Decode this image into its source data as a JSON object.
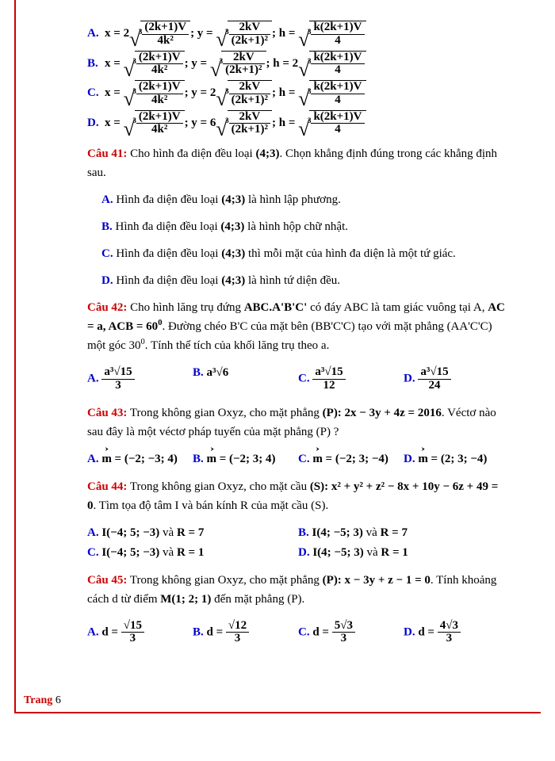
{
  "footer": {
    "label": "Trang",
    "num": "6"
  },
  "formula_opts": {
    "A": {
      "coef_x": "2",
      "coef_y": "",
      "coef_h": ""
    },
    "B": {
      "coef_x": "",
      "coef_y": "",
      "coef_h": "2"
    },
    "C": {
      "coef_x": "",
      "coef_y": "2",
      "coef_h": ""
    },
    "D": {
      "coef_x": "",
      "coef_y": "6",
      "coef_h": ""
    }
  },
  "q41": {
    "label": "Câu 41:",
    "text_before": " Cho hình đa diện đều loại ",
    "type": "(4;3)",
    "text_after": ". Chọn khẳng định đúng trong các khẳng định sau.",
    "opts": {
      "A": {
        "t1": "Hình đa diện đều loại ",
        "b": "(4;3)",
        "t2": " là hình lập phương."
      },
      "B": {
        "t1": "Hình đa diện đều loại ",
        "b": "(4;3)",
        "t2": " là hình hộp chữ nhật."
      },
      "C": {
        "t1": "Hình đa diện đều loại ",
        "b": "(4;3)",
        "t2": " thì mỗi mặt của hình đa diện là một tứ giác."
      },
      "D": {
        "t1": "Hình đa diện đều loại ",
        "b": "(4;3)",
        "t2": " là hình tứ diện đều."
      }
    }
  },
  "q42": {
    "label": "Câu 42:",
    "t1": " Cho hình lăng trụ đứng ",
    "prism": "ABC.A'B'C'",
    "t2": " có đáy ABC là tam giác vuông tại A, ",
    "cond": "AC = a, ACB = 60",
    "deg": "0",
    "t3": ". Đường chéo B'C của mặt bên (BB'C'C) tạo với mặt phẳng (AA'C'C) một góc 30",
    "t4": ". Tính thể tích của khối lăng trụ theo a.",
    "opts": {
      "A": {
        "num": "a³√15",
        "den": "3"
      },
      "B": {
        "plain": "a³√6"
      },
      "C": {
        "num": "a³√15",
        "den": "12"
      },
      "D": {
        "num": "a³√15",
        "den": "24"
      }
    }
  },
  "q43": {
    "label": "Câu 43:",
    "t1": " Trong không gian Oxyz, cho mặt phẳng ",
    "plane": "(P): 2x − 3y + 4z = 2016",
    "t2": ". Véctơ nào sau đây là một véctơ pháp tuyến của mặt phẳng (P) ?",
    "opts": {
      "A": "n = (−2; −3; 4)",
      "B": "n = (−2; 3; 4)",
      "C": "n = (−2; 3; −4)",
      "D": "n = (2; 3; −4)"
    }
  },
  "q44": {
    "label": "Câu 44:",
    "t1": " Trong không gian Oxyz, cho mặt cầu ",
    "sphere": "(S): x² + y² + z² − 8x + 10y − 6z + 49 = 0",
    "t2": ". Tìm tọa độ tâm I và bán kính R của mặt cầu (S).",
    "opts": {
      "A": {
        "i": "I(−4; 5; −3)",
        "r": "R = 7"
      },
      "B": {
        "i": "I(4; −5; 3)",
        "r": "R = 7"
      },
      "C": {
        "i": "I(−4; 5; −3)",
        "r": "R = 1"
      },
      "D": {
        "i": "I(4; −5; 3)",
        "r": "R = 1"
      }
    }
  },
  "q45": {
    "label": "Câu 45:",
    "t1": " Trong không gian Oxyz, cho mặt phẳng ",
    "plane": "(P): x − 3y + z − 1 = 0",
    "t2": ". Tính khoảng cách d từ điểm ",
    "point": "M(1; 2; 1)",
    "t3": " đến mặt phẳng (P).",
    "opts": {
      "A": {
        "num": "√15",
        "den": "3"
      },
      "B": {
        "num": "√12",
        "den": "3"
      },
      "C": {
        "num": "5√3",
        "den": "3"
      },
      "D": {
        "num": "4√3",
        "den": "3"
      }
    }
  }
}
